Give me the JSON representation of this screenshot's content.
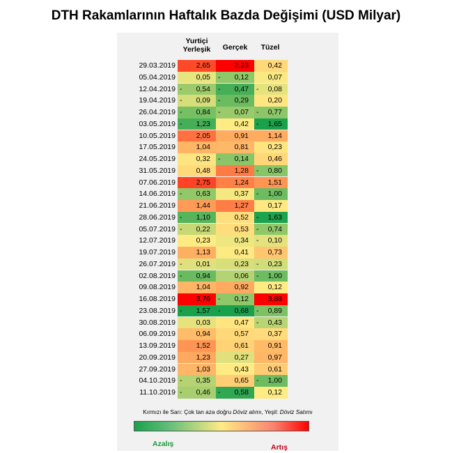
{
  "chart_data": {
    "type": "table",
    "title": "DTH Rakamlarının Haftalık Bazda Değişimi (USD Milyar)",
    "columns": [
      "Yurtiçi Yerleşik",
      "Gerçek",
      "Tüzel"
    ],
    "rows": [
      {
        "date": "29.03.2019",
        "values": [
          2.65,
          2.23,
          0.42
        ]
      },
      {
        "date": "05.04.2019",
        "values": [
          0.05,
          -0.12,
          0.07
        ]
      },
      {
        "date": "12.04.2019",
        "values": [
          -0.54,
          -0.47,
          -0.08
        ]
      },
      {
        "date": "19.04.2019",
        "values": [
          -0.09,
          -0.29,
          0.2
        ]
      },
      {
        "date": "26.04.2019",
        "values": [
          -0.84,
          -0.07,
          -0.77
        ]
      },
      {
        "date": "03.05.2019",
        "values": [
          -1.23,
          0.42,
          -1.65
        ]
      },
      {
        "date": "10.05.2019",
        "values": [
          2.05,
          0.91,
          1.14
        ]
      },
      {
        "date": "17.05.2019",
        "values": [
          1.04,
          0.81,
          0.23
        ]
      },
      {
        "date": "24.05.2019",
        "values": [
          0.32,
          -0.14,
          0.46
        ]
      },
      {
        "date": "31.05.2019",
        "values": [
          0.48,
          1.28,
          -0.8
        ]
      },
      {
        "date": "07.06.2019",
        "values": [
          2.75,
          1.24,
          1.51
        ]
      },
      {
        "date": "14.06.2019",
        "values": [
          -0.63,
          0.37,
          -1.0
        ]
      },
      {
        "date": "21.06.2019",
        "values": [
          1.44,
          1.27,
          0.17
        ]
      },
      {
        "date": "28.06.2019",
        "values": [
          -1.1,
          0.52,
          -1.63
        ]
      },
      {
        "date": "05.07.2019",
        "values": [
          -0.22,
          0.53,
          -0.74
        ]
      },
      {
        "date": "12.07.2019",
        "values": [
          0.23,
          0.34,
          -0.1
        ]
      },
      {
        "date": "19.07.2019",
        "values": [
          1.13,
          0.41,
          0.73
        ]
      },
      {
        "date": "26.07.2019",
        "values": [
          -0.01,
          0.23,
          -0.23
        ]
      },
      {
        "date": "02.08.2019",
        "values": [
          -0.94,
          0.06,
          -1.0
        ]
      },
      {
        "date": "09.08.2019",
        "values": [
          1.04,
          0.92,
          0.12
        ]
      },
      {
        "date": "16.08.2019",
        "values": [
          3.76,
          -0.12,
          3.88
        ]
      },
      {
        "date": "23.08.2019",
        "values": [
          -1.57,
          -0.68,
          -0.89
        ]
      },
      {
        "date": "30.08.2019",
        "values": [
          0.03,
          0.47,
          -0.43
        ]
      },
      {
        "date": "06.09.2019",
        "values": [
          0.94,
          0.57,
          0.37
        ]
      },
      {
        "date": "13.09.2019",
        "values": [
          1.52,
          0.61,
          0.91
        ]
      },
      {
        "date": "20.09.2019",
        "values": [
          1.23,
          0.27,
          0.97
        ]
      },
      {
        "date": "27.09.2019",
        "values": [
          1.03,
          0.43,
          0.61
        ]
      },
      {
        "date": "04.10.2019",
        "values": [
          -0.35,
          0.65,
          -1.0
        ]
      },
      {
        "date": "11.10.2019",
        "values": [
          -0.46,
          -0.58,
          0.12
        ]
      }
    ],
    "color_scale": {
      "low": "#1aa14c",
      "mid": "#ffeb84",
      "high": "#ff0000"
    }
  },
  "legend": {
    "note_plain": "Kırmızı ile Sarı: Çok tan aza doğru ",
    "note_italic1": "Döviz alımı",
    "note_mid": ", Yeşil: ",
    "note_italic2": "Döviz Satımı",
    "decrease_label": "Azalış",
    "increase_label": "Artış"
  }
}
